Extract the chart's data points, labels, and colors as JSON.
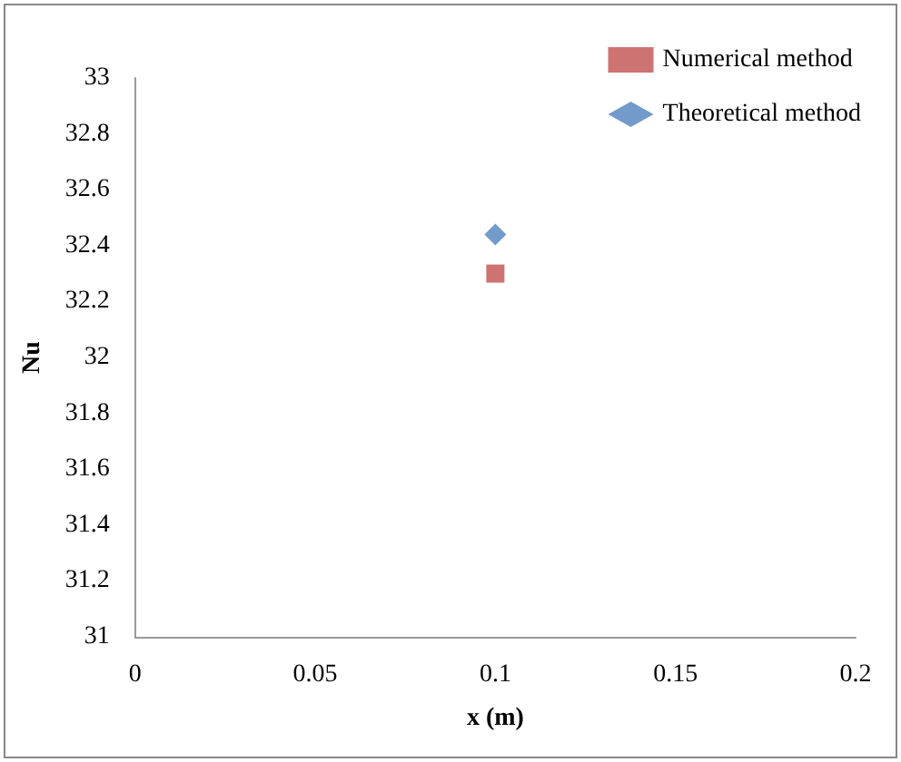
{
  "chart_data": {
    "type": "scatter",
    "xlabel": "x (m)",
    "ylabel": "Nu",
    "series": [
      {
        "name": "Numerical method",
        "color": "#c0504d",
        "marker": "square",
        "x": [
          0.1
        ],
        "values": [
          32.3
        ]
      },
      {
        "name": "Theoretical method",
        "color": "#4f81bd",
        "marker": "diamond",
        "x": [
          0.1
        ],
        "values": [
          32.44
        ]
      }
    ],
    "xlim": [
      0,
      0.2
    ],
    "xticks": [
      0,
      0.05,
      0.1,
      0.15,
      0.2
    ],
    "ylim": [
      31,
      33
    ],
    "yticks": [
      31,
      31.2,
      31.4,
      31.6,
      31.8,
      32,
      32.2,
      32.4,
      32.6,
      32.8,
      33
    ],
    "grid": false,
    "legend": "top right"
  }
}
